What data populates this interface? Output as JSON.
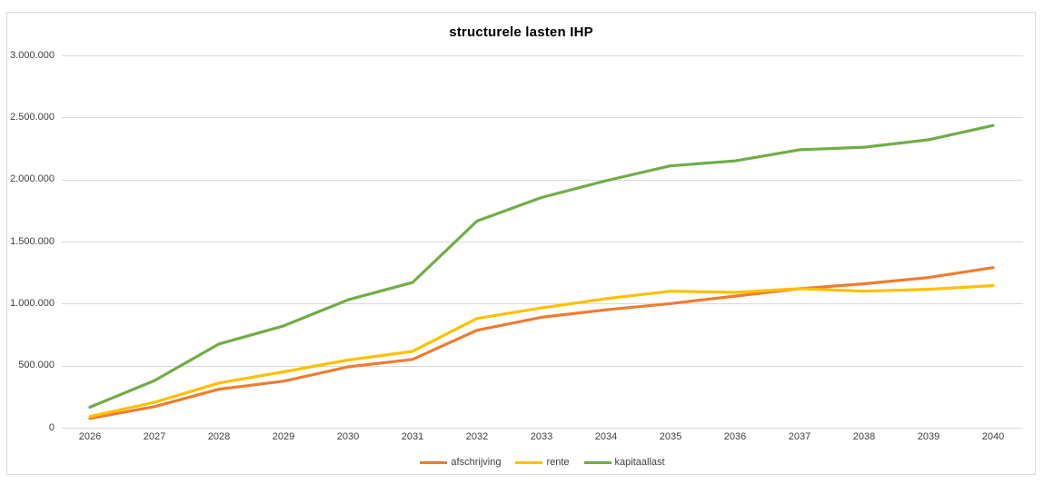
{
  "title": "structurele lasten IHP",
  "colors": {
    "afschrijving": "#ED7D31",
    "rente": "#FFC000",
    "kapitaallast": "#70AD47",
    "gridline": "#D9D9D9",
    "frame_border": "#D9D9D9",
    "axis_label": "#3F3F3F",
    "title_text": "#000000"
  },
  "legend": {
    "items": [
      "afschrijving",
      "rente",
      "kapitaallast"
    ],
    "position": "bottom-center"
  },
  "chart_data": {
    "type": "line",
    "title": "structurele lasten IHP",
    "xlabel": "",
    "ylabel": "",
    "x": [
      2026,
      2027,
      2028,
      2029,
      2030,
      2031,
      2032,
      2033,
      2034,
      2035,
      2036,
      2037,
      2038,
      2039,
      2040
    ],
    "series": [
      {
        "name": "afschrijving",
        "color": "#ED7D31",
        "values": [
          75000,
          170000,
          310000,
          375000,
          490000,
          550000,
          785000,
          890000,
          950000,
          1000000,
          1060000,
          1120000,
          1160000,
          1210000,
          1290000
        ]
      },
      {
        "name": "rente",
        "color": "#FFC000",
        "values": [
          90000,
          205000,
          360000,
          450000,
          545000,
          615000,
          880000,
          965000,
          1040000,
          1100000,
          1090000,
          1120000,
          1100000,
          1115000,
          1145000
        ]
      },
      {
        "name": "kapitaallast",
        "color": "#70AD47",
        "values": [
          165000,
          380000,
          675000,
          820000,
          1030000,
          1170000,
          1665000,
          1855000,
          1990000,
          2110000,
          2150000,
          2240000,
          2260000,
          2320000,
          2435000
        ]
      }
    ],
    "ylim": [
      0,
      3000000
    ],
    "ytick_step": 500000,
    "ytick_labels": [
      "0",
      "500.000",
      "1.000.000",
      "1.500.000",
      "2.000.000",
      "2.500.000",
      "3.000.000"
    ],
    "grid": true,
    "legend_position": "bottom"
  }
}
